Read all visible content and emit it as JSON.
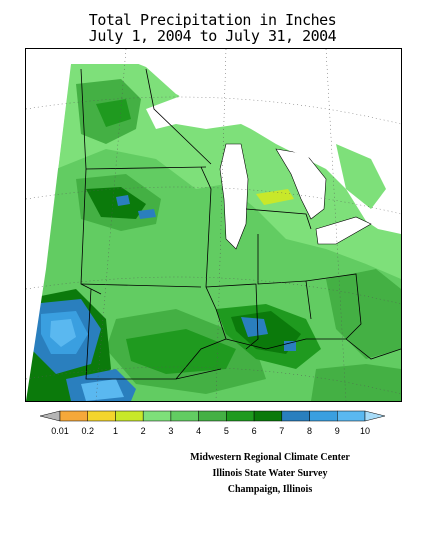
{
  "title": {
    "line1": "Total Precipitation in Inches",
    "line2": "July 1, 2004 to July 31, 2004"
  },
  "legend": {
    "labels": [
      "0.01",
      "0.2",
      "1",
      "2",
      "3",
      "4",
      "5",
      "6",
      "7",
      "8",
      "9",
      "10"
    ],
    "colors": [
      "#b5b5b5",
      "#f5a83a",
      "#f3d52c",
      "#c8e82a",
      "#7ee07a",
      "#62cc62",
      "#44b044",
      "#1f9a1f",
      "#0b7a0b",
      "#2a7fbe",
      "#3a9fe0",
      "#5ab8f0",
      "#a8dcf8"
    ]
  },
  "map": {
    "region": "Midwest",
    "water_color": "#ffffff",
    "border_color": "#000000",
    "grid_color": "#555555"
  },
  "credits": {
    "line1": "Midwestern Regional Climate Center",
    "line2": "Illinois State Water Survey",
    "line3": "Champaign, Illinois"
  }
}
